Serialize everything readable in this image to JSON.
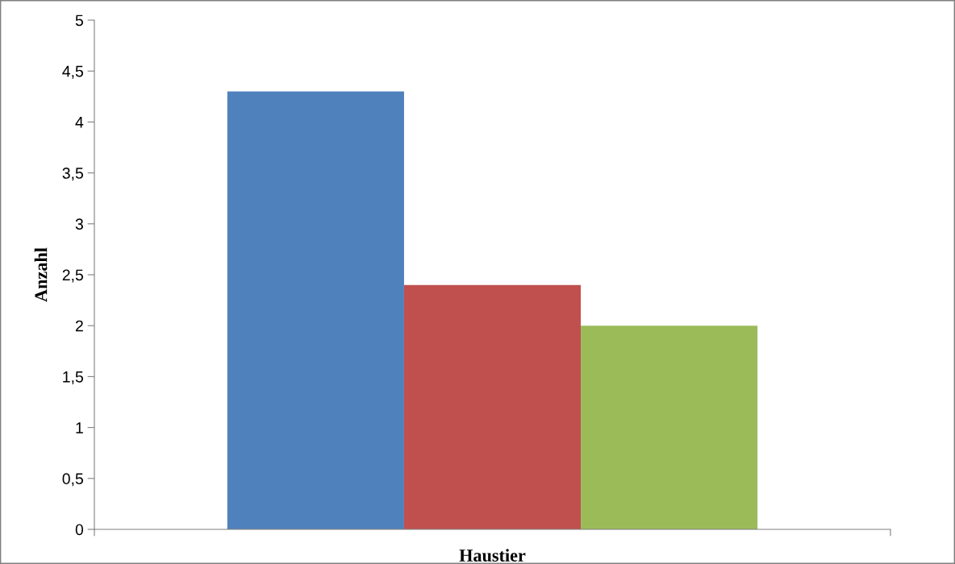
{
  "chart_data": {
    "type": "bar",
    "xlabel": "Haustier",
    "ylabel": "Anzahl",
    "categories": [
      null
    ],
    "series": [
      {
        "color": "#4f81bd",
        "values": [
          4.3
        ]
      },
      {
        "color": "#c0504d",
        "values": [
          2.4
        ]
      },
      {
        "color": "#9bbb59",
        "values": [
          2.0
        ]
      }
    ],
    "ylim": [
      0,
      5
    ],
    "yticks": [
      0,
      {
        "value": 0.5,
        "label": "0,5"
      },
      1,
      {
        "value": 1.5,
        "label": "1,5"
      },
      2,
      {
        "value": 2.5,
        "label": "2,5"
      },
      3,
      {
        "value": 3.5,
        "label": "3,5"
      },
      4,
      {
        "value": 4.5,
        "label": "4,5"
      },
      5
    ],
    "grid": false,
    "legend": false
  }
}
